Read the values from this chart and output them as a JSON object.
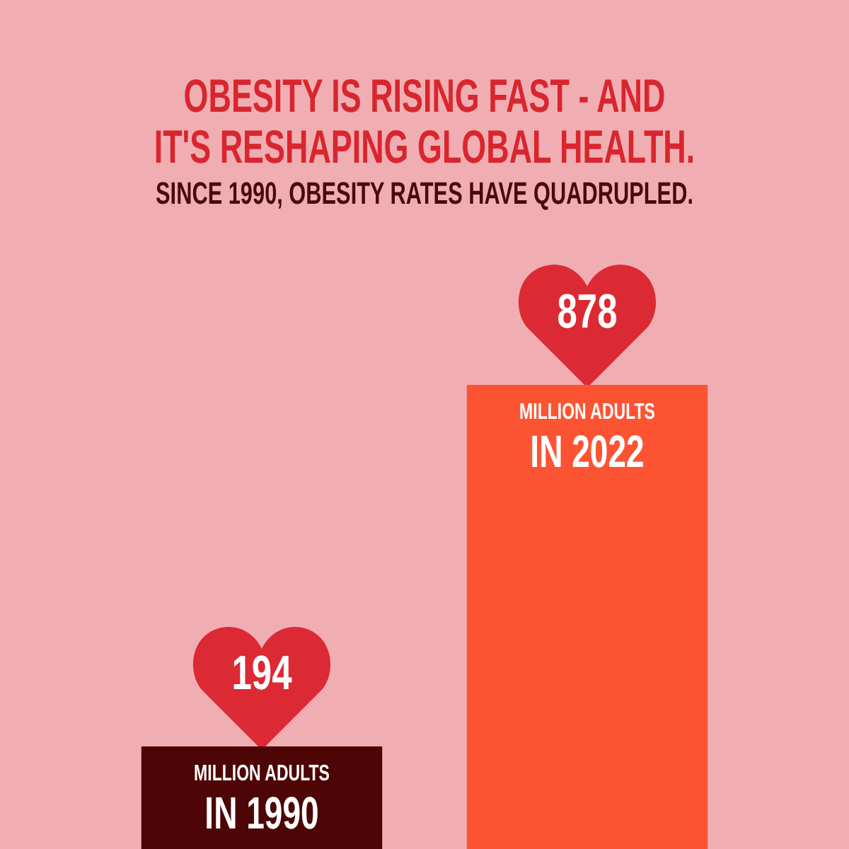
{
  "chart_data": {
    "type": "bar",
    "title": "OBESITY IS RISING FAST - AND IT'S RESHAPING GLOBAL HEALTH.",
    "subtitle": "SINCE 1990, OBESITY RATES HAVE QUADRUPLED.",
    "categories": [
      "MILLION ADULTS IN 1990",
      "MILLION ADULTS IN 2022"
    ],
    "values": [
      194,
      878
    ],
    "colors": [
      "#4d0505",
      "#fc5433"
    ],
    "data_labels": true,
    "legend": false
  }
}
